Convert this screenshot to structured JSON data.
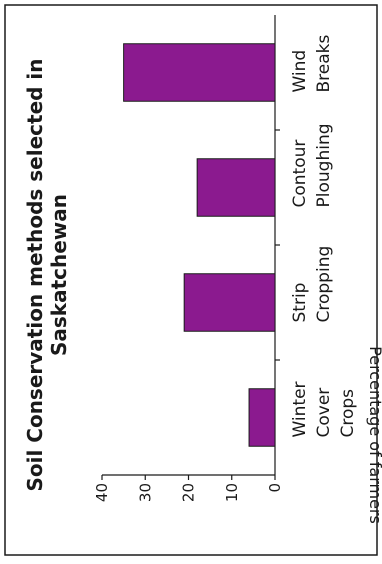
{
  "chart_data": {
    "type": "bar",
    "orientation": "rotated-90-ccw",
    "title_lines": [
      "Soil Conservation methods selected in",
      "Saskatchewan"
    ],
    "ylabel": "Percentage of farmers",
    "xlabel": "",
    "categories": [
      {
        "lines": [
          "Winter",
          "Cover",
          "Crops"
        ]
      },
      {
        "lines": [
          "Strip",
          "Cropping"
        ]
      },
      {
        "lines": [
          "Contour",
          "Ploughing"
        ]
      },
      {
        "lines": [
          "Wind",
          "Breaks"
        ]
      }
    ],
    "values": [
      6,
      21,
      18,
      35
    ],
    "ylim": [
      0,
      40
    ],
    "yticks": [
      "0",
      "10",
      "20",
      "30",
      "40"
    ],
    "bar_color": "#8b1a8f",
    "grid": false
  }
}
